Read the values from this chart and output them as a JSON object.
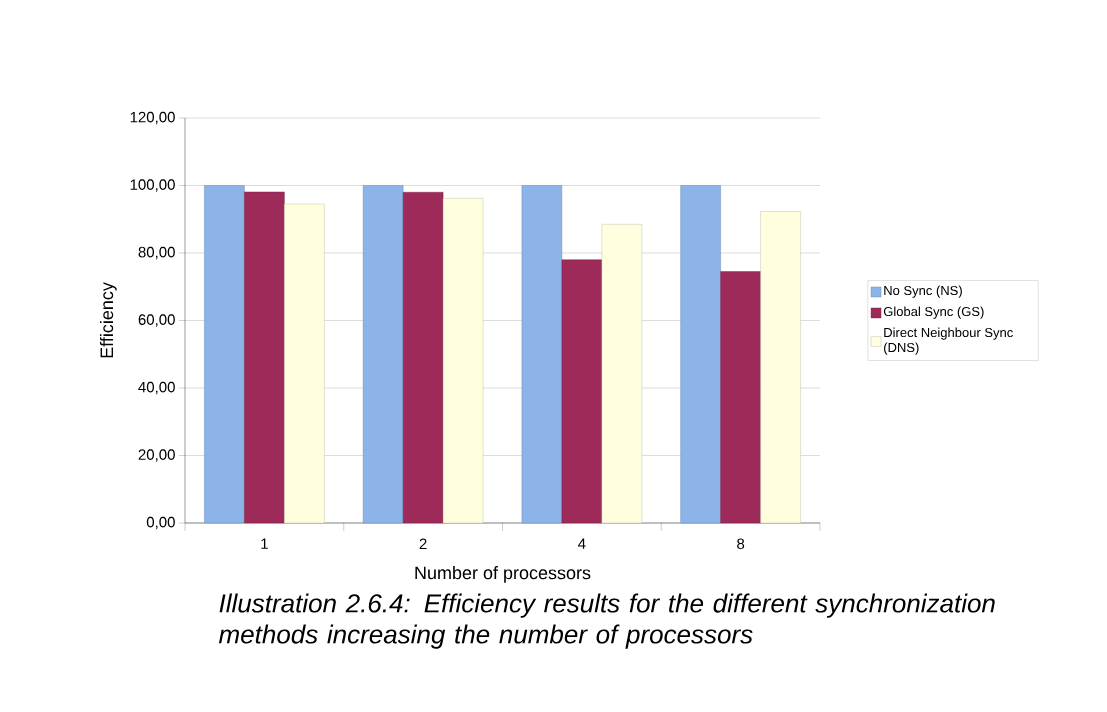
{
  "chart_data": {
    "type": "bar",
    "xlabel": "Number of processors",
    "ylabel": "Efficiency",
    "annotations": [
      "*Illustration 2.6.4: Efficiency results for the different synchronization methods increasing the number of processors*"
    ],
    "categories": [
      "1",
      "2",
      "4",
      "8"
    ],
    "series": [
      {
        "name": "No Sync (NS)",
        "color": "#8db4e8",
        "values": [
          100,
          100,
          100,
          100
        ]
      },
      {
        "name": "Global Sync (GS)",
        "color": "#9e2a5a",
        "values": [
          98.1,
          98,
          78,
          74.5
        ]
      },
      {
        "name": "Direct Neighbour Sync (DNS)",
        "color": "#ffffe0",
        "values": [
          94.5,
          96.2,
          88.5,
          92.3
        ]
      }
    ],
    "ylim": [
      0,
      120
    ],
    "yticks": [
      {
        "value": 0,
        "label": "0,00"
      },
      {
        "value": 20,
        "label": "20,00"
      },
      {
        "value": 40,
        "label": "40,00"
      },
      {
        "value": 60,
        "label": "60,00"
      },
      {
        "value": 80,
        "label": "80,00"
      },
      {
        "value": 100,
        "label": "100,00"
      },
      {
        "value": 120,
        "label": "120,00"
      }
    ],
    "grid": "y",
    "legend": "right"
  }
}
